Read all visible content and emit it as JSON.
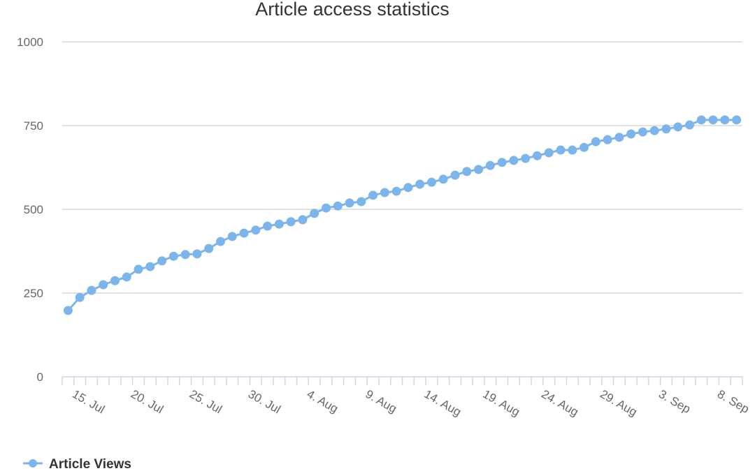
{
  "chart_data": {
    "type": "line",
    "title": "Article access statistics",
    "categories": [
      null,
      "15. Jul",
      null,
      null,
      null,
      null,
      "20. Jul",
      null,
      null,
      null,
      null,
      "25. Jul",
      null,
      null,
      null,
      null,
      "30. Jul",
      null,
      null,
      null,
      null,
      "4. Aug",
      null,
      null,
      null,
      null,
      "9. Aug",
      null,
      null,
      null,
      null,
      "14. Aug",
      null,
      null,
      null,
      null,
      "19. Aug",
      null,
      null,
      null,
      null,
      "24. Aug",
      null,
      null,
      null,
      null,
      "29. Aug",
      null,
      null,
      null,
      null,
      "3. Sep",
      null,
      null,
      null,
      null,
      "8. Sep",
      null
    ],
    "series": [
      {
        "name": "Article Views",
        "color": "#7cb5ec",
        "values": [
          198,
          237,
          258,
          275,
          287,
          298,
          321,
          329,
          346,
          360,
          365,
          367,
          383,
          404,
          419,
          429,
          438,
          450,
          456,
          463,
          469,
          488,
          504,
          510,
          519,
          523,
          542,
          550,
          554,
          565,
          575,
          581,
          590,
          602,
          613,
          619,
          631,
          640,
          646,
          652,
          660,
          669,
          677,
          677,
          685,
          702,
          708,
          715,
          725,
          731,
          735,
          740,
          746,
          752,
          767,
          767,
          767,
          767
        ]
      }
    ],
    "ylim": [
      0,
      1000
    ],
    "yticks": [
      0,
      250,
      500,
      750,
      1000
    ],
    "grid": true,
    "legend": "bottom-left"
  }
}
